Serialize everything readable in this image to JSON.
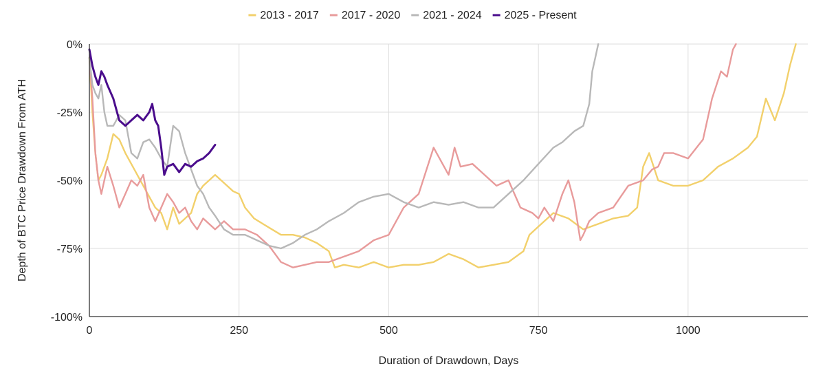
{
  "chart_data": {
    "type": "line",
    "xlabel": "Duration of Drawdown, Days",
    "ylabel": "Depth of BTC Price Drawdown From ATH",
    "xlim": [
      0,
      1200
    ],
    "ylim": [
      -100,
      0
    ],
    "x_ticks": [
      0,
      250,
      500,
      750,
      1000
    ],
    "x_tick_labels": [
      "0",
      "250",
      "500",
      "750",
      "1000"
    ],
    "y_ticks": [
      0,
      -25,
      -50,
      -75,
      -100
    ],
    "y_tick_labels": [
      "0%",
      "-25%",
      "-50%",
      "-75%",
      "-100%"
    ],
    "grid": true,
    "legend_position": "top-center",
    "series": [
      {
        "name": "2013 - 2017",
        "color": "#f2d06b",
        "x": [
          0,
          5,
          10,
          15,
          20,
          30,
          40,
          50,
          60,
          70,
          80,
          90,
          100,
          110,
          120,
          130,
          140,
          150,
          160,
          170,
          180,
          190,
          200,
          210,
          220,
          230,
          240,
          250,
          260,
          275,
          290,
          305,
          320,
          340,
          360,
          380,
          400,
          410,
          425,
          450,
          475,
          500,
          525,
          550,
          575,
          600,
          625,
          650,
          675,
          700,
          725,
          735,
          750,
          775,
          800,
          825,
          850,
          875,
          900,
          915,
          925,
          935,
          950,
          975,
          1000,
          1025,
          1050,
          1075,
          1100,
          1115,
          1130,
          1145,
          1160,
          1170,
          1180
        ],
        "values": [
          -5,
          -25,
          -40,
          -50,
          -48,
          -42,
          -33,
          -35,
          -40,
          -44,
          -48,
          -52,
          -56,
          -60,
          -62,
          -68,
          -60,
          -66,
          -64,
          -62,
          -55,
          -52,
          -50,
          -48,
          -50,
          -52,
          -54,
          -55,
          -60,
          -64,
          -66,
          -68,
          -70,
          -70,
          -71,
          -73,
          -76,
          -82,
          -81,
          -82,
          -80,
          -82,
          -81,
          -81,
          -80,
          -77,
          -79,
          -82,
          -81,
          -80,
          -76,
          -70,
          -67,
          -62,
          -64,
          -68,
          -66,
          -64,
          -63,
          -60,
          -45,
          -40,
          -50,
          -52,
          -52,
          -50,
          -45,
          -42,
          -38,
          -34,
          -20,
          -28,
          -18,
          -8,
          0
        ]
      },
      {
        "name": "2017 - 2020",
        "color": "#e89b9b",
        "x": [
          0,
          5,
          10,
          15,
          20,
          30,
          40,
          50,
          60,
          70,
          80,
          90,
          100,
          110,
          120,
          130,
          140,
          150,
          160,
          170,
          180,
          190,
          200,
          210,
          225,
          240,
          260,
          280,
          300,
          320,
          340,
          360,
          380,
          400,
          425,
          450,
          475,
          500,
          525,
          550,
          575,
          585,
          600,
          610,
          620,
          640,
          660,
          680,
          700,
          720,
          740,
          750,
          760,
          775,
          790,
          800,
          810,
          820,
          825,
          835,
          850,
          875,
          900,
          925,
          940,
          950,
          960,
          975,
          1000,
          1025,
          1040,
          1055,
          1065,
          1075,
          1080
        ],
        "values": [
          -5,
          -20,
          -40,
          -50,
          -55,
          -45,
          -52,
          -60,
          -55,
          -50,
          -52,
          -48,
          -60,
          -65,
          -60,
          -55,
          -58,
          -62,
          -60,
          -65,
          -68,
          -64,
          -66,
          -68,
          -65,
          -68,
          -68,
          -70,
          -74,
          -80,
          -82,
          -81,
          -80,
          -80,
          -78,
          -76,
          -72,
          -70,
          -60,
          -55,
          -38,
          -42,
          -48,
          -38,
          -45,
          -44,
          -48,
          -52,
          -50,
          -60,
          -62,
          -64,
          -60,
          -65,
          -55,
          -50,
          -58,
          -72,
          -70,
          -65,
          -62,
          -60,
          -52,
          -50,
          -46,
          -45,
          -40,
          -40,
          -42,
          -35,
          -20,
          -10,
          -12,
          -2,
          0
        ]
      },
      {
        "name": "2021 - 2024",
        "color": "#b8b8b8",
        "x": [
          0,
          5,
          10,
          15,
          20,
          25,
          30,
          40,
          50,
          60,
          70,
          80,
          90,
          100,
          110,
          120,
          130,
          140,
          150,
          160,
          170,
          180,
          190,
          200,
          210,
          225,
          240,
          260,
          280,
          300,
          320,
          340,
          360,
          380,
          400,
          425,
          450,
          475,
          500,
          525,
          550,
          575,
          600,
          625,
          650,
          675,
          700,
          725,
          750,
          775,
          790,
          800,
          810,
          825,
          835,
          840,
          845,
          850
        ],
        "values": [
          -5,
          -15,
          -18,
          -20,
          -15,
          -25,
          -30,
          -30,
          -26,
          -28,
          -40,
          -42,
          -36,
          -35,
          -38,
          -42,
          -45,
          -30,
          -32,
          -40,
          -46,
          -52,
          -55,
          -60,
          -63,
          -68,
          -70,
          -70,
          -72,
          -74,
          -75,
          -73,
          -70,
          -68,
          -65,
          -62,
          -58,
          -56,
          -55,
          -58,
          -60,
          -58,
          -59,
          -58,
          -60,
          -60,
          -55,
          -50,
          -44,
          -38,
          -36,
          -34,
          -32,
          -30,
          -22,
          -10,
          -5,
          0
        ]
      },
      {
        "name": "2025 - Present",
        "color": "#4a0c8c",
        "x": [
          0,
          5,
          10,
          15,
          20,
          25,
          30,
          40,
          50,
          60,
          70,
          80,
          90,
          100,
          105,
          110,
          115,
          120,
          125,
          130,
          140,
          150,
          160,
          170,
          180,
          190,
          200,
          210
        ],
        "values": [
          -2,
          -8,
          -12,
          -15,
          -10,
          -12,
          -15,
          -20,
          -28,
          -30,
          -28,
          -26,
          -28,
          -25,
          -22,
          -28,
          -30,
          -38,
          -48,
          -45,
          -44,
          -47,
          -44,
          -45,
          -43,
          -42,
          -40,
          -37
        ]
      }
    ]
  }
}
